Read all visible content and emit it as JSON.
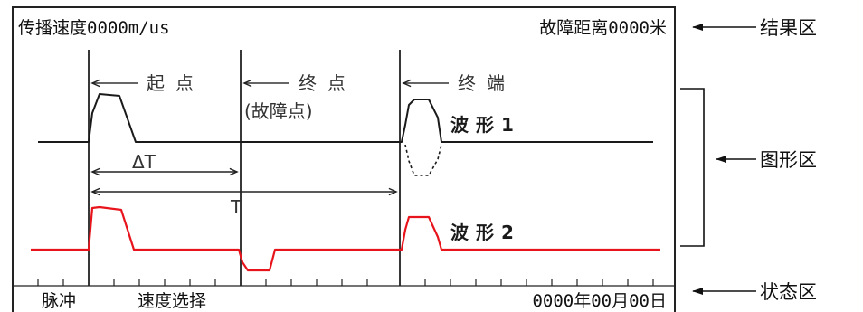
{
  "result_area": {
    "speed_label": "传播速度0000m/us",
    "distance_label": "故障距离0000米"
  },
  "markers": {
    "start": "起点",
    "end": "终点",
    "fault_point": "(故障点)",
    "terminal": "终端",
    "delta_t": "ΔT",
    "t": "T"
  },
  "waveforms": {
    "wave1": "波形1",
    "wave2": "波形2"
  },
  "status_area": {
    "pulse": "脉冲",
    "speed_select": "速度选择",
    "date": "0000年00月00日"
  },
  "zones": {
    "result": "结果区",
    "graphic": "图形区",
    "status": "状态区"
  },
  "colors": {
    "wave1": "#1a1a1a",
    "wave2": "#e8141c"
  }
}
